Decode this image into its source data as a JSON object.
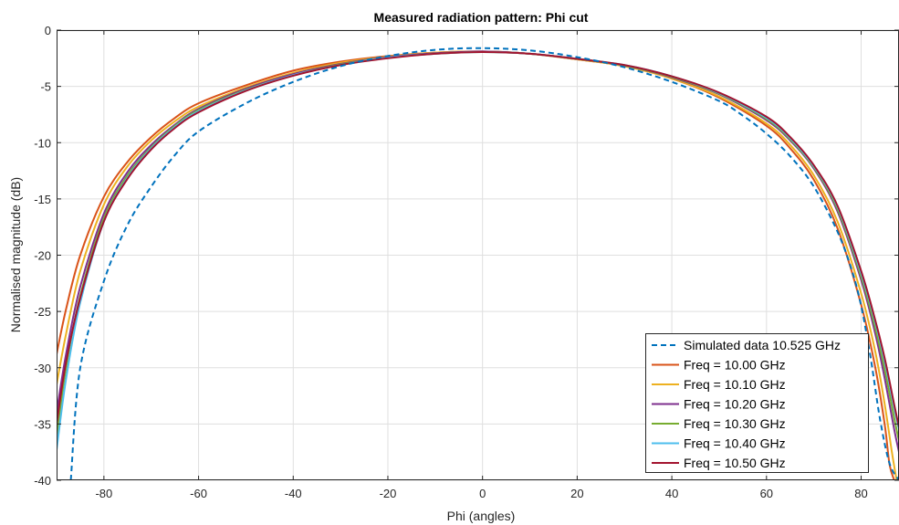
{
  "chart_data": {
    "type": "line",
    "title": "Measured radiation pattern: Phi cut",
    "xlabel": "Phi (angles)",
    "ylabel": "Normalised magnitude (dB)",
    "xlim": [
      -90,
      88
    ],
    "ylim": [
      -40,
      0
    ],
    "xticks": [
      -80,
      -60,
      -40,
      -20,
      0,
      20,
      40,
      60,
      80
    ],
    "yticks": [
      0,
      -5,
      -10,
      -15,
      -20,
      -25,
      -30,
      -35,
      -40
    ],
    "grid": true,
    "legend_position": "bottom-right",
    "series": [
      {
        "name": "Simulated data 10.525 GHz",
        "style": "dashed",
        "color": "#0072bd",
        "x": [
          -87,
          -85,
          -80,
          -75,
          -70,
          -65,
          -60,
          -50,
          -40,
          -30,
          -20,
          -10,
          0,
          10,
          20,
          30,
          40,
          50,
          55,
          60,
          65,
          70,
          75,
          78,
          80,
          82,
          84,
          86,
          88
        ],
        "y": [
          -40,
          -30,
          -22.3,
          -17.3,
          -13.9,
          -11.1,
          -9.0,
          -6.5,
          -4.6,
          -3.2,
          -2.3,
          -1.75,
          -1.6,
          -1.8,
          -2.4,
          -3.3,
          -4.6,
          -6.3,
          -7.6,
          -9.2,
          -11.2,
          -13.9,
          -17.9,
          -21.3,
          -24.5,
          -29.1,
          -34.6,
          -38.5,
          -40
        ]
      },
      {
        "name": "Freq = 10.00 GHz",
        "style": "solid",
        "color": "#d95319",
        "x": [
          -90,
          -88,
          -85,
          -80,
          -75,
          -70,
          -65,
          -60,
          -50,
          -40,
          -30,
          -20,
          -10,
          0,
          10,
          20,
          30,
          40,
          50,
          60,
          65,
          70,
          75,
          80,
          83,
          85,
          86,
          87
        ],
        "y": [
          -28.8,
          -24.8,
          -20.0,
          -14.8,
          -11.7,
          -9.5,
          -7.8,
          -6.5,
          -4.9,
          -3.6,
          -2.8,
          -2.3,
          -2.0,
          -1.9,
          -2.1,
          -2.6,
          -3.2,
          -4.3,
          -6.0,
          -8.5,
          -10.5,
          -13.3,
          -17.6,
          -24.4,
          -30.0,
          -35.1,
          -38.6,
          -40
        ]
      },
      {
        "name": "Freq = 10.10 GHz",
        "style": "solid",
        "color": "#edb120",
        "x": [
          -90,
          -88,
          -85,
          -80,
          -75,
          -70,
          -65,
          -60,
          -50,
          -40,
          -30,
          -20,
          -10,
          0,
          10,
          20,
          30,
          40,
          50,
          60,
          65,
          70,
          75,
          80,
          83,
          85,
          86.5,
          87.5
        ],
        "y": [
          -31.5,
          -27.0,
          -21.4,
          -15.5,
          -12.1,
          -9.8,
          -8.1,
          -6.8,
          -5.1,
          -3.8,
          -2.9,
          -2.35,
          -2.0,
          -1.9,
          -2.1,
          -2.6,
          -3.2,
          -4.3,
          -5.9,
          -8.3,
          -10.2,
          -12.9,
          -17.0,
          -23.4,
          -28.6,
          -33.3,
          -37.5,
          -40
        ]
      },
      {
        "name": "Freq = 10.20 GHz",
        "style": "solid",
        "color": "#7e2f8e",
        "x": [
          -90,
          -88,
          -85,
          -80,
          -75,
          -70,
          -65,
          -60,
          -50,
          -40,
          -30,
          -20,
          -10,
          0,
          10,
          20,
          30,
          40,
          50,
          60,
          65,
          70,
          75,
          80,
          83,
          85,
          87,
          88
        ],
        "y": [
          -34.0,
          -28.8,
          -22.8,
          -16.3,
          -12.6,
          -10.2,
          -8.4,
          -7.0,
          -5.2,
          -3.9,
          -3.0,
          -2.4,
          -2.05,
          -1.9,
          -2.1,
          -2.55,
          -3.15,
          -4.2,
          -5.7,
          -8.0,
          -9.8,
          -12.3,
          -16.1,
          -22.2,
          -27.0,
          -31.0,
          -35.5,
          -37.5
        ]
      },
      {
        "name": "Freq = 10.30 GHz",
        "style": "solid",
        "color": "#77ac30",
        "x": [
          -90,
          -88,
          -85,
          -80,
          -75,
          -70,
          -65,
          -60,
          -50,
          -40,
          -30,
          -20,
          -10,
          0,
          10,
          20,
          30,
          40,
          50,
          60,
          65,
          70,
          75,
          80,
          83,
          85,
          87,
          88
        ],
        "y": [
          -36.2,
          -30.0,
          -23.6,
          -16.7,
          -12.9,
          -10.4,
          -8.5,
          -7.1,
          -5.3,
          -4.0,
          -3.05,
          -2.45,
          -2.1,
          -1.95,
          -2.1,
          -2.55,
          -3.15,
          -4.15,
          -5.65,
          -7.9,
          -9.7,
          -12.2,
          -15.9,
          -21.9,
          -26.5,
          -30.2,
          -34.5,
          -36.5
        ]
      },
      {
        "name": "Freq = 10.40 GHz",
        "style": "solid",
        "color": "#4dbeee",
        "x": [
          -90,
          -88,
          -85,
          -80,
          -75,
          -70,
          -65,
          -60,
          -50,
          -40,
          -30,
          -20,
          -10,
          0,
          10,
          20,
          30,
          40,
          50,
          60,
          65,
          70,
          75,
          80,
          83,
          85,
          87,
          88
        ],
        "y": [
          -37.3,
          -31.0,
          -24.2,
          -17.0,
          -13.1,
          -10.5,
          -8.6,
          -7.2,
          -5.35,
          -4.0,
          -3.1,
          -2.45,
          -2.1,
          -1.95,
          -2.1,
          -2.55,
          -3.1,
          -4.1,
          -5.6,
          -7.8,
          -9.6,
          -12.1,
          -15.7,
          -21.6,
          -26.0,
          -29.5,
          -33.6,
          -35.5
        ]
      },
      {
        "name": "Freq = 10.50 GHz",
        "style": "solid",
        "color": "#a2142f",
        "x": [
          -90,
          -88,
          -85,
          -80,
          -75,
          -70,
          -65,
          -60,
          -50,
          -40,
          -30,
          -20,
          -10,
          0,
          10,
          20,
          30,
          40,
          50,
          60,
          65,
          70,
          75,
          80,
          83,
          85,
          87,
          88
        ],
        "y": [
          -35.0,
          -29.5,
          -23.8,
          -17.0,
          -13.2,
          -10.6,
          -8.7,
          -7.3,
          -5.4,
          -4.05,
          -3.1,
          -2.5,
          -2.1,
          -1.95,
          -2.1,
          -2.55,
          -3.1,
          -4.1,
          -5.55,
          -7.7,
          -9.5,
          -12.0,
          -15.6,
          -21.4,
          -25.8,
          -29.2,
          -33.3,
          -35.3
        ]
      }
    ]
  }
}
